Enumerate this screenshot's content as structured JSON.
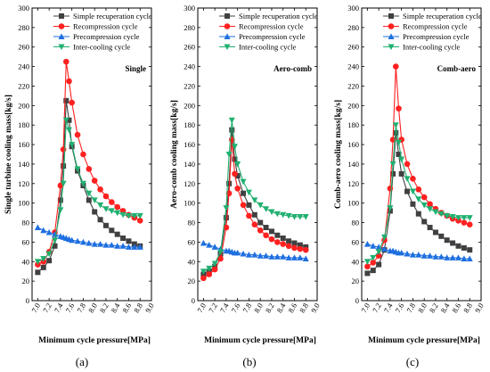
{
  "figure": {
    "panel_labels": [
      "(a)",
      "(b)",
      "(c)"
    ]
  },
  "chart_data": [
    {
      "type": "line",
      "panel_label": "(a)",
      "annotation": "Single",
      "xlabel": "Minimum cycle pressure[MPa]",
      "ylabel": "Single turbine cooling mass[kg/s]",
      "xlim": [
        6.9,
        9.0
      ],
      "ylim": [
        0,
        300
      ],
      "xticks": [
        "7.0",
        "7.2",
        "7.4",
        "7.6",
        "7.8",
        "8.0",
        "8.2",
        "8.4",
        "8.6",
        "8.8",
        "9.0"
      ],
      "yticks": [
        "0",
        "20",
        "40",
        "60",
        "80",
        "100",
        "120",
        "140",
        "160",
        "180",
        "200",
        "220",
        "240",
        "260",
        "280",
        "300"
      ],
      "x": [
        7.0,
        7.1,
        7.2,
        7.3,
        7.4,
        7.45,
        7.5,
        7.55,
        7.6,
        7.7,
        7.8,
        7.9,
        8.0,
        8.1,
        8.2,
        8.3,
        8.4,
        8.5,
        8.6,
        8.7,
        8.8
      ],
      "series": [
        {
          "name": "Simple recuperation cycle",
          "color": "#404040",
          "marker": "square",
          "values": [
            29,
            34,
            41,
            56,
            103,
            138,
            205,
            185,
            158,
            133,
            118,
            103,
            91,
            83,
            77,
            72,
            68,
            64,
            61,
            58,
            56
          ]
        },
        {
          "name": "Recompression cycle",
          "color": "#ff2020",
          "marker": "circle",
          "values": [
            37,
            40,
            50,
            70,
            118,
            155,
            245,
            225,
            203,
            170,
            150,
            135,
            123,
            114,
            107,
            101,
            96,
            92,
            88,
            85,
            82
          ]
        },
        {
          "name": "Precompression cycle",
          "color": "#1e6fe0",
          "marker": "triangle-up",
          "values": [
            75,
            72,
            70,
            68,
            66,
            65,
            64,
            63,
            62,
            61,
            60,
            59,
            58,
            58,
            57,
            57,
            56,
            56,
            55,
            55,
            55
          ]
        },
        {
          "name": "Inter-cooling cycle",
          "color": "#20b070",
          "marker": "triangle-down",
          "values": [
            40,
            43,
            48,
            62,
            93,
            120,
            185,
            175,
            160,
            135,
            120,
            110,
            103,
            98,
            94,
            92,
            90,
            88,
            87,
            87,
            87
          ]
        }
      ]
    },
    {
      "type": "line",
      "panel_label": "(b)",
      "annotation": "Aero-comb",
      "xlabel": "Minimum cycle pressure[MPa]",
      "ylabel": "Aero-comb cooling mass[kg/s]",
      "xlim": [
        6.9,
        9.0
      ],
      "ylim": [
        0,
        300
      ],
      "xticks": [
        "7.0",
        "7.2",
        "7.4",
        "7.6",
        "7.8",
        "8.0",
        "8.2",
        "8.4",
        "8.6",
        "8.8",
        "9.0"
      ],
      "yticks": [
        "0",
        "20",
        "40",
        "60",
        "80",
        "100",
        "120",
        "140",
        "160",
        "180",
        "200",
        "220",
        "240",
        "260",
        "280",
        "300"
      ],
      "x": [
        7.0,
        7.1,
        7.2,
        7.3,
        7.4,
        7.45,
        7.5,
        7.55,
        7.6,
        7.7,
        7.8,
        7.9,
        8.0,
        8.1,
        8.2,
        8.3,
        8.4,
        8.5,
        8.6,
        8.7,
        8.8
      ],
      "series": [
        {
          "name": "Simple recuperation cycle",
          "color": "#404040",
          "marker": "square",
          "values": [
            27,
            30,
            35,
            48,
            85,
            120,
            175,
            145,
            128,
            110,
            98,
            88,
            80,
            75,
            71,
            67,
            64,
            61,
            59,
            57,
            55
          ]
        },
        {
          "name": "Recompression cycle",
          "color": "#ff2020",
          "marker": "circle",
          "values": [
            23,
            27,
            32,
            43,
            75,
            110,
            165,
            130,
            115,
            98,
            87,
            78,
            72,
            67,
            63,
            60,
            58,
            56,
            54,
            53,
            52
          ]
        },
        {
          "name": "Precompression cycle",
          "color": "#1e6fe0",
          "marker": "triangle-up",
          "values": [
            59,
            57,
            55,
            53,
            51,
            51,
            50,
            49,
            49,
            48,
            47,
            47,
            46,
            46,
            45,
            45,
            45,
            44,
            44,
            44,
            43
          ]
        },
        {
          "name": "Inter-cooling cycle",
          "color": "#20b070",
          "marker": "triangle-down",
          "values": [
            30,
            33,
            38,
            50,
            95,
            150,
            185,
            158,
            140,
            122,
            111,
            103,
            98,
            94,
            91,
            89,
            88,
            87,
            86,
            86,
            86
          ]
        }
      ]
    },
    {
      "type": "line",
      "panel_label": "(c)",
      "annotation": "Comb-aero",
      "xlabel": "Minimum cycle pressure[MPa]",
      "ylabel": "Comb-aero cooling mass[kg/s]",
      "xlim": [
        6.9,
        9.0
      ],
      "ylim": [
        0,
        300
      ],
      "xticks": [
        "7.0",
        "7.2",
        "7.4",
        "7.6",
        "7.8",
        "8.0",
        "8.2",
        "8.4",
        "8.6",
        "8.8",
        "9.0"
      ],
      "yticks": [
        "0",
        "20",
        "40",
        "60",
        "80",
        "100",
        "120",
        "140",
        "160",
        "180",
        "200",
        "220",
        "240",
        "260",
        "280",
        "300"
      ],
      "x": [
        7.0,
        7.1,
        7.2,
        7.3,
        7.4,
        7.45,
        7.5,
        7.55,
        7.6,
        7.7,
        7.8,
        7.9,
        8.0,
        8.1,
        8.2,
        8.3,
        8.4,
        8.5,
        8.6,
        8.7,
        8.8
      ],
      "series": [
        {
          "name": "Simple recuperation cycle",
          "color": "#404040",
          "marker": "square",
          "values": [
            28,
            31,
            37,
            52,
            92,
            130,
            172,
            150,
            130,
            112,
            99,
            89,
            81,
            75,
            70,
            66,
            62,
            59,
            56,
            54,
            52
          ]
        },
        {
          "name": "Recompression cycle",
          "color": "#ff2020",
          "marker": "circle",
          "values": [
            35,
            39,
            46,
            62,
            115,
            165,
            240,
            197,
            165,
            140,
            125,
            114,
            106,
            99,
            94,
            90,
            87,
            84,
            82,
            80,
            78
          ]
        },
        {
          "name": "Precompression cycle",
          "color": "#1e6fe0",
          "marker": "triangle-up",
          "values": [
            58,
            56,
            55,
            53,
            51,
            51,
            50,
            49,
            49,
            48,
            47,
            47,
            46,
            46,
            45,
            45,
            44,
            44,
            44,
            43,
            43
          ]
        },
        {
          "name": "Inter-cooling cycle",
          "color": "#20b070",
          "marker": "triangle-down",
          "values": [
            40,
            44,
            50,
            65,
            95,
            140,
            180,
            162,
            145,
            125,
            112,
            104,
            98,
            94,
            91,
            89,
            87,
            86,
            85,
            85,
            85
          ]
        }
      ]
    }
  ]
}
